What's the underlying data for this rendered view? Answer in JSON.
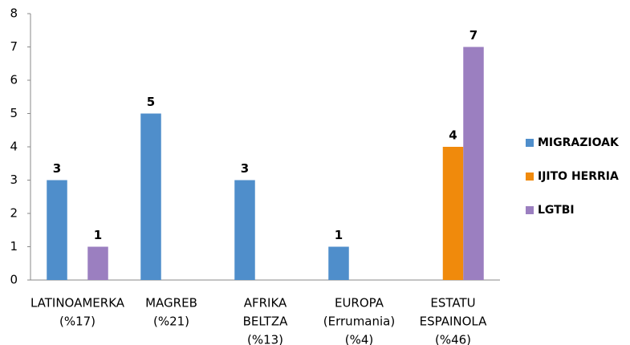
{
  "chart_data": {
    "type": "bar",
    "categories": [
      [
        "LATINOAMERKA",
        "(%17)"
      ],
      [
        "MAGREB",
        "(%21)"
      ],
      [
        "AFRIKA",
        "BELTZA",
        "(%13)"
      ],
      [
        "EUROPA",
        "(Errumania)",
        "(%4)"
      ],
      [
        "ESTATU",
        "ESPAINOLA",
        "(%46)"
      ]
    ],
    "series": [
      {
        "name": "MIGRAZIOAK",
        "color": "#4f8ecb",
        "values": [
          3,
          5,
          3,
          1,
          null
        ]
      },
      {
        "name": "IJITO HERRIA",
        "color": "#f08a0c",
        "values": [
          null,
          null,
          null,
          null,
          4
        ]
      },
      {
        "name": "LGTBI",
        "color": "#9b7fc0",
        "values": [
          1,
          null,
          null,
          null,
          7
        ]
      }
    ],
    "ylim": [
      0,
      8
    ],
    "yticks": [
      0,
      1,
      2,
      3,
      4,
      5,
      6,
      7,
      8
    ],
    "grid": false,
    "legend": "right"
  }
}
